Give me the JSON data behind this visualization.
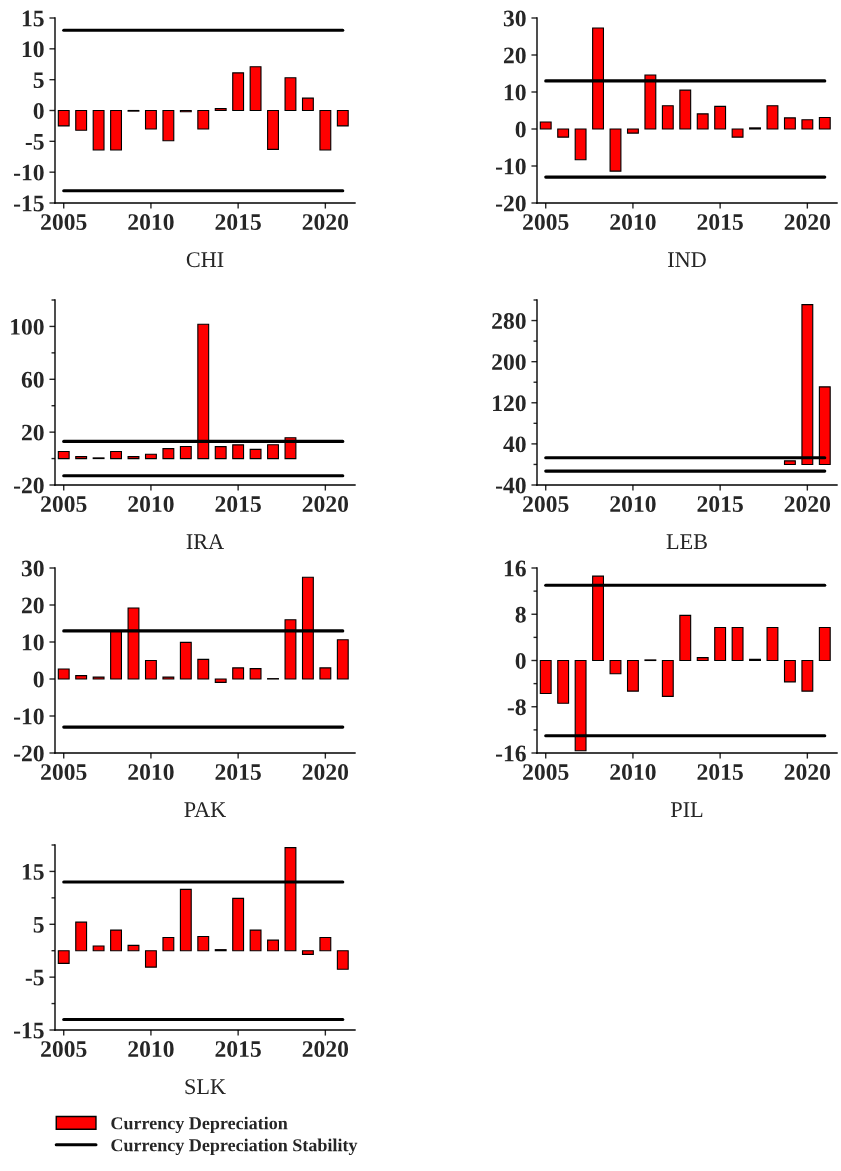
{
  "chart_data": [
    {
      "type": "bar",
      "xlabel": "CHI",
      "x": [
        2005,
        2006,
        2007,
        2008,
        2009,
        2010,
        2011,
        2012,
        2013,
        2014,
        2015,
        2016,
        2017,
        2018,
        2019,
        2020,
        2021
      ],
      "xlim": [
        2004.5,
        2021.7
      ],
      "xticks": [
        2005,
        2010,
        2015,
        2020
      ],
      "ylim": [
        -15,
        15
      ],
      "yticks": [
        -15,
        -10,
        -5,
        0,
        5,
        10,
        15
      ],
      "grid": false,
      "series": [
        {
          "color": "#ff0000",
          "values": [
            -2.5,
            -3.2,
            -6.4,
            -6.4,
            -0.1,
            -3.0,
            -4.9,
            -0.2,
            -3.0,
            0.3,
            6.1,
            7.1,
            -6.3,
            5.3,
            2.0,
            -6.4,
            -2.5
          ]
        },
        {
          "type": "line",
          "color": "#000000",
          "x": [
            2005,
            2021
          ],
          "values": [
            13,
            13
          ]
        },
        {
          "type": "line",
          "color": "#000000",
          "x": [
            2005,
            2021
          ],
          "values": [
            -13,
            -13
          ]
        }
      ]
    },
    {
      "type": "bar",
      "xlabel": "IND",
      "x": [
        2005,
        2006,
        2007,
        2008,
        2009,
        2010,
        2011,
        2012,
        2013,
        2014,
        2015,
        2016,
        2017,
        2018,
        2019,
        2020,
        2021
      ],
      "xlim": [
        2004.5,
        2021.7
      ],
      "xticks": [
        2005,
        2010,
        2015,
        2020
      ],
      "ylim": [
        -20,
        30
      ],
      "yticks": [
        -20,
        -10,
        0,
        10,
        20,
        30
      ],
      "grid": false,
      "series": [
        {
          "color": "#ff0000",
          "values": [
            1.9,
            -2.2,
            -8.3,
            27.3,
            -11.4,
            -1.1,
            14.6,
            6.3,
            10.5,
            4.1,
            6.1,
            -2.2,
            0.3,
            6.3,
            3.0,
            2.5,
            3.1
          ]
        },
        {
          "type": "line",
          "color": "#000000",
          "x": [
            2005,
            2021
          ],
          "values": [
            13,
            13
          ]
        },
        {
          "type": "line",
          "color": "#000000",
          "x": [
            2005,
            2021
          ],
          "values": [
            -13,
            -13
          ]
        }
      ]
    },
    {
      "type": "bar",
      "xlabel": "IRA",
      "xlim": [
        2004.5,
        2021.7
      ],
      "xticks": [
        2005,
        2010,
        2015,
        2020
      ],
      "ylim": [
        -20,
        120
      ],
      "yticks": [
        -20,
        {
          "value": 0,
          "label": null
        },
        20,
        {
          "value": 40,
          "label": null
        },
        60,
        {
          "value": 80,
          "label": null
        },
        100,
        {
          "value": 120,
          "label": null
        }
      ],
      "grid": false,
      "series": [
        {
          "color": "#ff0000",
          "x": [
            2005,
            2006,
            2007,
            2008,
            2009,
            2010,
            2011,
            2012,
            2013,
            2014,
            2015,
            2016,
            2017,
            2018
          ],
          "values": [
            5.4,
            1.5,
            0.5,
            5.4,
            1.5,
            3.3,
            7.5,
            9.1,
            101.7,
            9.0,
            10.4,
            7.0,
            10.5,
            15.8
          ]
        },
        {
          "type": "line",
          "color": "#000000",
          "x": [
            2005,
            2021
          ],
          "values": [
            13,
            13
          ]
        },
        {
          "type": "line",
          "color": "#000000",
          "x": [
            2005,
            2021
          ],
          "values": [
            -13,
            -13
          ]
        }
      ]
    },
    {
      "type": "bar",
      "xlabel": "LEB",
      "xlim": [
        2004.5,
        2021.7
      ],
      "xticks": [
        2005,
        2010,
        2015,
        2020
      ],
      "ylim": [
        -40,
        320
      ],
      "yticks": [
        -40,
        {
          "value": 0,
          "label": null
        },
        40,
        {
          "value": 80,
          "label": null
        },
        120,
        {
          "value": 160,
          "label": null
        },
        200,
        {
          "value": 240,
          "label": null
        },
        280,
        {
          "value": 320,
          "label": null
        }
      ],
      "grid": false,
      "series": [
        {
          "color": "#ff0000",
          "x": [
            2019,
            2020,
            2021
          ],
          "values": [
            7,
            311,
            151
          ]
        },
        {
          "type": "line",
          "color": "#000000",
          "x": [
            2005,
            2021
          ],
          "values": [
            13,
            13
          ]
        },
        {
          "type": "line",
          "color": "#000000",
          "x": [
            2005,
            2021
          ],
          "values": [
            -13,
            -13
          ]
        }
      ]
    },
    {
      "type": "bar",
      "xlabel": "PAK",
      "x": [
        2005,
        2006,
        2007,
        2008,
        2009,
        2010,
        2011,
        2012,
        2013,
        2014,
        2015,
        2016,
        2017,
        2018,
        2019,
        2020,
        2021
      ],
      "xlim": [
        2004.5,
        2021.7
      ],
      "xticks": [
        2005,
        2010,
        2015,
        2020
      ],
      "ylim": [
        -20,
        30
      ],
      "yticks": [
        -20,
        -10,
        0,
        10,
        20,
        30
      ],
      "grid": false,
      "series": [
        {
          "color": "#ff0000",
          "values": [
            2.7,
            0.9,
            0.5,
            13.0,
            19.2,
            5.0,
            0.5,
            9.9,
            5.3,
            -0.9,
            3.0,
            2.8,
            0.1,
            16.0,
            27.5,
            3.0,
            10.6
          ]
        },
        {
          "type": "line",
          "color": "#000000",
          "x": [
            2005,
            2021
          ],
          "values": [
            13,
            13
          ]
        },
        {
          "type": "line",
          "color": "#000000",
          "x": [
            2005,
            2021
          ],
          "values": [
            -13,
            -13
          ]
        }
      ]
    },
    {
      "type": "bar",
      "xlabel": "PIL",
      "x": [
        2005,
        2006,
        2007,
        2008,
        2009,
        2010,
        2011,
        2012,
        2013,
        2014,
        2015,
        2016,
        2017,
        2018,
        2019,
        2020,
        2021
      ],
      "xlim": [
        2004.5,
        2021.7
      ],
      "xticks": [
        2005,
        2010,
        2015,
        2020
      ],
      "ylim": [
        -16,
        16
      ],
      "yticks": [
        -16,
        {
          "value": -12,
          "label": null
        },
        -8,
        {
          "value": -4,
          "label": null
        },
        0,
        {
          "value": 4,
          "label": null
        },
        8,
        {
          "value": 12,
          "label": null
        },
        16
      ],
      "grid": false,
      "series": [
        {
          "color": "#ff0000",
          "values": [
            -5.7,
            -7.4,
            -15.6,
            14.6,
            -2.3,
            -5.3,
            0.1,
            -6.2,
            7.8,
            0.5,
            5.7,
            5.7,
            0.2,
            5.7,
            -3.7,
            -5.3,
            5.7
          ]
        },
        {
          "type": "line",
          "color": "#000000",
          "x": [
            2005,
            2021
          ],
          "values": [
            13,
            13
          ]
        },
        {
          "type": "line",
          "color": "#000000",
          "x": [
            2005,
            2021
          ],
          "values": [
            -13,
            -13
          ]
        }
      ]
    },
    {
      "type": "bar",
      "xlabel": "SLK",
      "x": [
        2005,
        2006,
        2007,
        2008,
        2009,
        2010,
        2011,
        2012,
        2013,
        2014,
        2015,
        2016,
        2017,
        2018,
        2019,
        2020,
        2021
      ],
      "xlim": [
        2004.5,
        2021.7
      ],
      "xticks": [
        2005,
        2010,
        2015,
        2020
      ],
      "ylim": [
        -15,
        20
      ],
      "yticks": [
        -15,
        {
          "value": -10,
          "label": null
        },
        -5,
        {
          "value": 0,
          "label": null
        },
        5,
        {
          "value": 10,
          "label": null
        },
        15,
        {
          "value": 20,
          "label": null
        }
      ],
      "grid": false,
      "legend": "bottom",
      "series": [
        {
          "name": "Currency Depreciation",
          "color": "#ff0000",
          "values": [
            -2.4,
            5.4,
            0.9,
            3.9,
            1.0,
            -3.1,
            2.5,
            11.6,
            2.7,
            0.2,
            9.9,
            3.9,
            2.0,
            19.5,
            -0.7,
            2.5,
            -3.5
          ]
        },
        {
          "type": "line",
          "name": "Currency Depreciation Stability",
          "color": "#000000",
          "x": [
            2005,
            2021
          ],
          "values": [
            13,
            13
          ]
        },
        {
          "type": "line",
          "color": "#000000",
          "x": [
            2005,
            2021
          ],
          "values": [
            -13,
            -13
          ]
        }
      ]
    }
  ]
}
